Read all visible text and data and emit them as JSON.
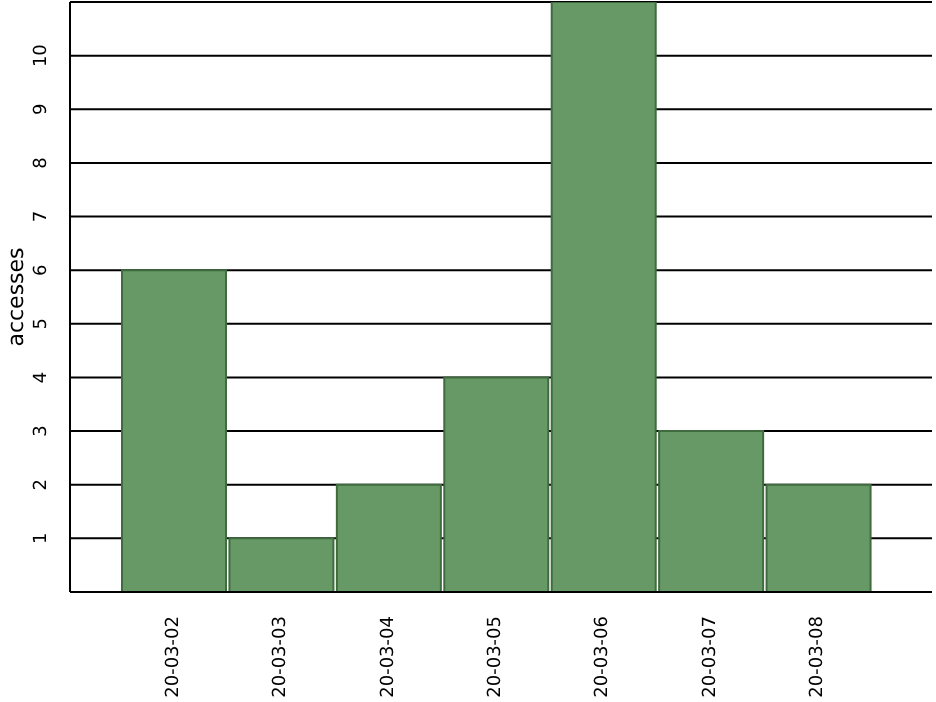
{
  "chart_data": {
    "type": "bar",
    "ylabel": "accesses",
    "categories": [
      "20-03-02",
      "20-03-03",
      "20-03-04",
      "20-03-05",
      "20-03-06",
      "20-03-07",
      "20-03-08"
    ],
    "values": [
      6,
      1,
      2,
      4,
      11,
      3,
      2
    ],
    "color": "#669966",
    "ylim": [
      0,
      11
    ],
    "yticks": [
      1,
      2,
      3,
      4,
      5,
      6,
      7,
      8,
      9,
      10
    ],
    "grid": "y"
  }
}
